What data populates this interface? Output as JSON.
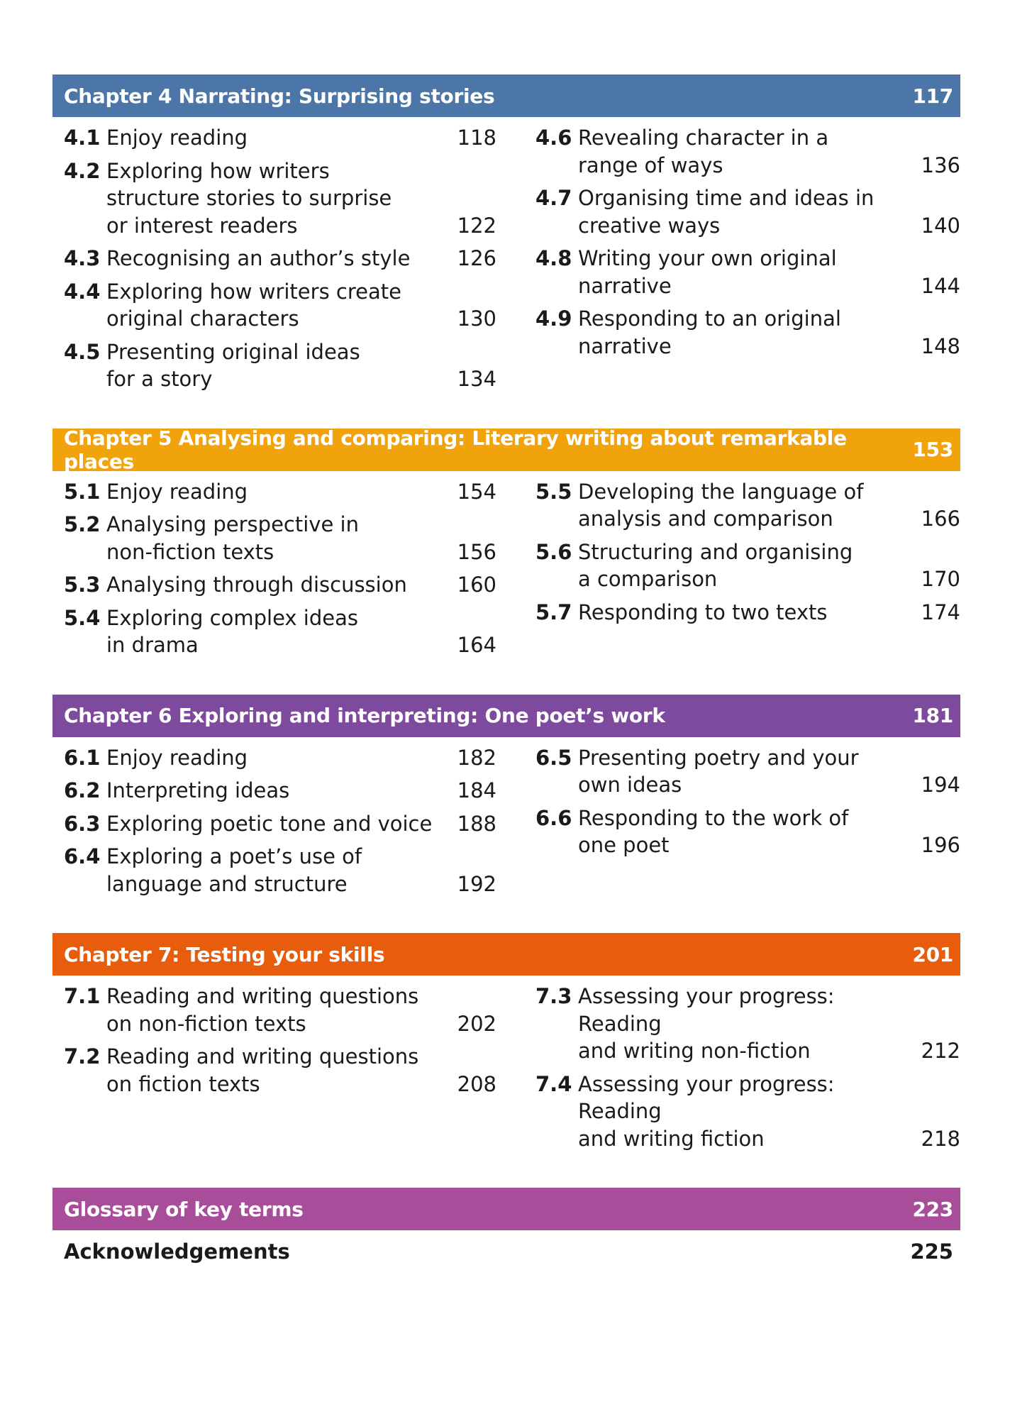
{
  "chapters": [
    {
      "title": "Chapter 4 Narrating: Surprising stories",
      "page": "117",
      "color": "#4d76a8",
      "left": [
        {
          "num": "4.1",
          "title": "Enjoy reading",
          "page": "118"
        },
        {
          "num": "4.2",
          "title": "Exploring how writers\nstructure stories to surprise\nor interest readers",
          "page": "122"
        },
        {
          "num": "4.3",
          "title": "Recognising an author’s style",
          "page": "126"
        },
        {
          "num": "4.4",
          "title": "Exploring how writers create\noriginal characters",
          "page": "130"
        },
        {
          "num": "4.5",
          "title": "Presenting original ideas\nfor a story",
          "page": "134"
        }
      ],
      "right": [
        {
          "num": "4.6",
          "title": "Revealing character in a\nrange of ways",
          "page": "136"
        },
        {
          "num": "4.7",
          "title": "Organising time and ideas in\ncreative ways",
          "page": "140"
        },
        {
          "num": "4.8",
          "title": "Writing your own original\nnarrative",
          "page": "144"
        },
        {
          "num": "4.9",
          "title": "Responding to an original\nnarrative",
          "page": "148"
        }
      ]
    },
    {
      "title": "Chapter 5 Analysing and comparing: Literary writing about remarkable places",
      "page": "153",
      "color": "#f0a30a",
      "left": [
        {
          "num": "5.1",
          "title": "Enjoy reading",
          "page": "154"
        },
        {
          "num": "5.2",
          "title": "Analysing perspective in\nnon-fiction texts",
          "page": "156"
        },
        {
          "num": "5.3",
          "title": "Analysing through discussion",
          "page": "160"
        },
        {
          "num": "5.4",
          "title": "Exploring complex ideas\nin drama",
          "page": "164"
        }
      ],
      "right": [
        {
          "num": "5.5",
          "title": "Developing the language of\nanalysis and comparison",
          "page": "166"
        },
        {
          "num": "5.6",
          "title": "Structuring and organising\na comparison",
          "page": "170"
        },
        {
          "num": "5.7",
          "title": "Responding to two texts",
          "page": "174"
        }
      ]
    },
    {
      "title": "Chapter 6 Exploring and interpreting: One poet’s work",
      "page": "181",
      "color": "#7e4a9e",
      "left": [
        {
          "num": "6.1",
          "title": "Enjoy reading",
          "page": "182"
        },
        {
          "num": "6.2",
          "title": "Interpreting ideas",
          "page": "184"
        },
        {
          "num": "6.3",
          "title": "Exploring poetic tone and voice",
          "page": "188"
        },
        {
          "num": "6.4",
          "title": "Exploring a poet’s use of\nlanguage and structure",
          "page": "192"
        }
      ],
      "right": [
        {
          "num": "6.5",
          "title": "Presenting poetry and your\nown ideas",
          "page": "194"
        },
        {
          "num": "6.6",
          "title": "Responding to the work of\none poet",
          "page": "196"
        }
      ]
    },
    {
      "title": "Chapter 7: Testing your skills",
      "page": "201",
      "color": "#e85d0c",
      "left": [
        {
          "num": "7.1",
          "title": "Reading and writing questions\non non-fiction texts",
          "page": "202"
        },
        {
          "num": "7.2",
          "title": "Reading and writing questions\non fiction texts",
          "page": "208"
        }
      ],
      "right": [
        {
          "num": "7.3",
          "title": "Assessing your progress: Reading\nand writing non-fiction",
          "page": "212"
        },
        {
          "num": "7.4",
          "title": "Assessing your progress: Reading\nand writing fiction",
          "page": "218"
        }
      ]
    }
  ],
  "glossary": {
    "title": "Glossary of key terms",
    "page": "223",
    "color": "#a84d9a"
  },
  "acknowledgements": {
    "title": "Acknowledgements",
    "page": "225"
  }
}
